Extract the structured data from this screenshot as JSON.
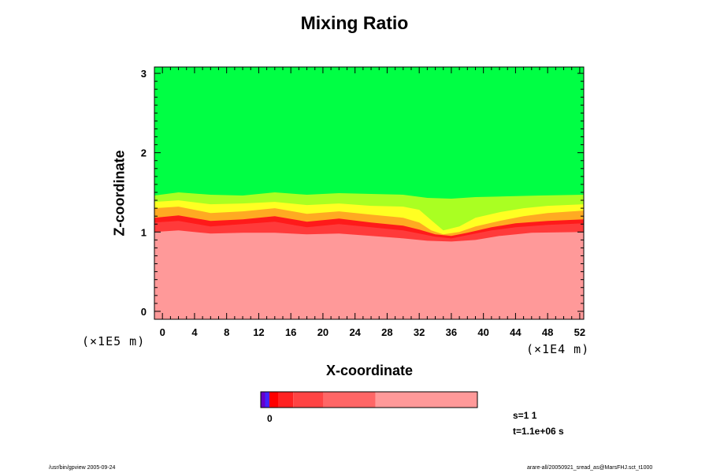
{
  "chart_data": {
    "type": "heatmap",
    "title": "Mixing Ratio",
    "xlabel": "X-coordinate",
    "ylabel": "Z-coordinate",
    "x_unit": "(×1E4 m)",
    "y_unit": "(×1E5 m)",
    "xlim": [
      -1,
      52.5
    ],
    "ylim": [
      -0.1,
      3.08
    ],
    "x_ticks": [
      "0",
      "4",
      "8",
      "12",
      "16",
      "20",
      "24",
      "28",
      "32",
      "36",
      "40",
      "44",
      "48",
      "52"
    ],
    "y_ticks": [
      "0",
      "1",
      "2",
      "3"
    ],
    "layers": [
      {
        "name": "upper region",
        "color": "#00ff44",
        "boundary": [
          [
            -1,
            1.46
          ],
          [
            2,
            1.5
          ],
          [
            6,
            1.47
          ],
          [
            10,
            1.46
          ],
          [
            14,
            1.5
          ],
          [
            18,
            1.47
          ],
          [
            22,
            1.49
          ],
          [
            26,
            1.48
          ],
          [
            30,
            1.47
          ],
          [
            33,
            1.43
          ],
          [
            36,
            1.42
          ],
          [
            39,
            1.44
          ],
          [
            43,
            1.45
          ],
          [
            47,
            1.46
          ],
          [
            52.5,
            1.47
          ]
        ]
      },
      {
        "name": "yellow-green transition",
        "color": "#aaff22",
        "boundary": [
          [
            -1,
            1.38
          ],
          [
            2,
            1.4
          ],
          [
            6,
            1.35
          ],
          [
            10,
            1.36
          ],
          [
            14,
            1.38
          ],
          [
            18,
            1.34
          ],
          [
            22,
            1.36
          ],
          [
            26,
            1.33
          ],
          [
            30,
            1.32
          ],
          [
            32,
            1.28
          ],
          [
            33.5,
            1.15
          ],
          [
            35,
            1.02
          ],
          [
            37,
            1.07
          ],
          [
            39,
            1.18
          ],
          [
            42,
            1.25
          ],
          [
            45,
            1.3
          ],
          [
            48,
            1.33
          ],
          [
            52.5,
            1.35
          ]
        ]
      },
      {
        "name": "yellow",
        "color": "#ffff22",
        "boundary": [
          [
            -1,
            1.3
          ],
          [
            2,
            1.32
          ],
          [
            6,
            1.24
          ],
          [
            10,
            1.26
          ],
          [
            14,
            1.3
          ],
          [
            18,
            1.23
          ],
          [
            22,
            1.26
          ],
          [
            26,
            1.22
          ],
          [
            30,
            1.18
          ],
          [
            32,
            1.12
          ],
          [
            33.5,
            1.02
          ],
          [
            35,
            0.97
          ],
          [
            37,
            1.0
          ],
          [
            39,
            1.07
          ],
          [
            42,
            1.14
          ],
          [
            45,
            1.2
          ],
          [
            48,
            1.24
          ],
          [
            52.5,
            1.27
          ]
        ]
      },
      {
        "name": "orange",
        "color": "#ffaa22",
        "boundary": [
          [
            -1,
            1.18
          ],
          [
            2,
            1.21
          ],
          [
            6,
            1.14
          ],
          [
            10,
            1.16
          ],
          [
            14,
            1.2
          ],
          [
            18,
            1.13
          ],
          [
            22,
            1.17
          ],
          [
            26,
            1.12
          ],
          [
            30,
            1.08
          ],
          [
            32,
            1.03
          ],
          [
            34,
            0.97
          ],
          [
            36,
            0.95
          ],
          [
            38,
            0.99
          ],
          [
            41,
            1.06
          ],
          [
            44,
            1.11
          ],
          [
            48,
            1.14
          ],
          [
            52.5,
            1.16
          ]
        ]
      },
      {
        "name": "red",
        "color": "#ff1a1a",
        "boundary": [
          [
            -1,
            1.12
          ],
          [
            2,
            1.14
          ],
          [
            6,
            1.07
          ],
          [
            10,
            1.1
          ],
          [
            14,
            1.13
          ],
          [
            18,
            1.06
          ],
          [
            22,
            1.1
          ],
          [
            26,
            1.06
          ],
          [
            30,
            1.02
          ],
          [
            32,
            0.98
          ],
          [
            34,
            0.94
          ],
          [
            36,
            0.92
          ],
          [
            38,
            0.96
          ],
          [
            41,
            1.02
          ],
          [
            44,
            1.06
          ],
          [
            48,
            1.09
          ],
          [
            52.5,
            1.11
          ]
        ]
      },
      {
        "name": "dark red",
        "color": "#ff3a3a",
        "boundary": [
          [
            -1,
            1.0
          ],
          [
            2,
            1.02
          ],
          [
            6,
            0.98
          ],
          [
            10,
            0.99
          ],
          [
            14,
            0.99
          ],
          [
            18,
            0.97
          ],
          [
            22,
            0.98
          ],
          [
            26,
            0.95
          ],
          [
            30,
            0.92
          ],
          [
            33,
            0.89
          ],
          [
            36,
            0.88
          ],
          [
            39,
            0.9
          ],
          [
            42,
            0.95
          ],
          [
            46,
            0.99
          ],
          [
            52.5,
            1.0
          ]
        ]
      },
      {
        "name": "lower region",
        "color": "#ff9999",
        "boundary": null
      }
    ],
    "colorbar": {
      "label": "0",
      "segments": [
        {
          "color": "#6600cc",
          "width": 2
        },
        {
          "color": "#4422ff",
          "width": 2
        },
        {
          "color": "#ff0000",
          "width": 4
        },
        {
          "color": "#ff2222",
          "width": 7
        },
        {
          "color": "#ff4444",
          "width": 14
        },
        {
          "color": "#ff6666",
          "width": 24
        },
        {
          "color": "#ff9999",
          "width": 47
        }
      ]
    },
    "annotation": {
      "s": "s=1 1",
      "t": "t=1.1e+06 s"
    }
  },
  "footer": {
    "left": "/usr/bin/gpview 2005-09-24",
    "right": "arare-all/20050921_sread_as@MarsFHJ.sct_t1000"
  }
}
